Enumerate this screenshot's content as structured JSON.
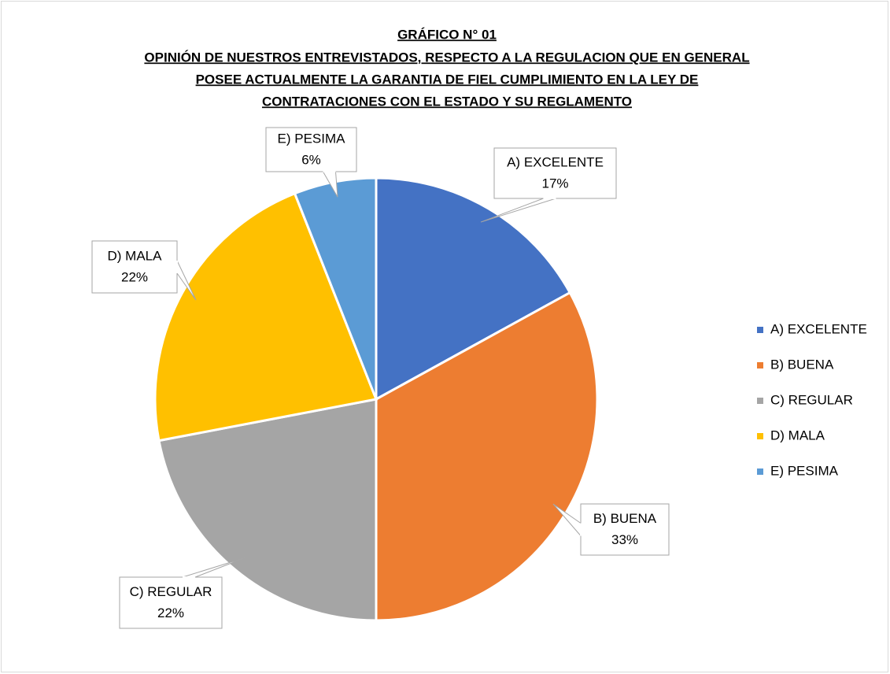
{
  "chart_data": {
    "type": "pie",
    "title": "GRÁFICO N° 01",
    "subtitle": [
      "OPINIÓN DE NUESTROS ENTREVISTADOS, RESPECTO A LA REGULACION QUE EN GENERAL",
      "POSEE ACTUALMENTE LA GARANTIA DE FIEL CUMPLIMIENTO EN LA LEY DE",
      "CONTRATACIONES CON EL ESTADO Y SU REGLAMENTO"
    ],
    "categories": [
      "A) EXCELENTE",
      "B) BUENA",
      "C) REGULAR",
      "D) MALA",
      "E) PESIMA"
    ],
    "values": [
      17,
      33,
      22,
      22,
      6
    ],
    "value_labels": [
      "17%",
      "33%",
      "22%",
      "22%",
      "6%"
    ],
    "colors": [
      "#4472c4",
      "#ed7d31",
      "#a5a5a5",
      "#ffc000",
      "#5b9bd5"
    ],
    "legend": "right"
  }
}
